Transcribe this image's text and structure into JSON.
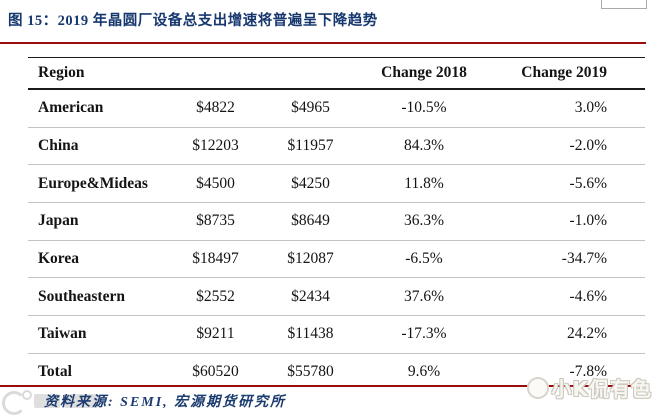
{
  "figure": {
    "title": "图 15：2019 年晶圆厂设备总支出增速将普遍呈下降趋势",
    "source_note": "资料来源: SEMI, 宏源期货研究所"
  },
  "watermark": {
    "brand_right": "小K侃有色"
  },
  "colors": {
    "title_blue": "#17386e",
    "divider_red": "#9a0d0d",
    "row_divider_gray": "#c3c3c3",
    "table_text": "#141414"
  },
  "chart_data": {
    "type": "table",
    "title": "2019 年晶圆厂设备总支出增速将普遍呈下降趋势",
    "header_labels": {
      "region": "Region",
      "value_2018": "",
      "value_2019": "",
      "change_2018": "Change 2018",
      "change_2019": "Change 2019"
    },
    "rows": [
      {
        "region": "American",
        "value_2018": "$4822",
        "value_2019": "$4965",
        "change_2018": "-10.5%",
        "change_2019": "3.0%"
      },
      {
        "region": "China",
        "value_2018": "$12203",
        "value_2019": "$11957",
        "change_2018": "84.3%",
        "change_2019": "-2.0%"
      },
      {
        "region": "Europe&Mideas",
        "value_2018": "$4500",
        "value_2019": "$4250",
        "change_2018": "11.8%",
        "change_2019": "-5.6%"
      },
      {
        "region": "Japan",
        "value_2018": "$8735",
        "value_2019": "$8649",
        "change_2018": "36.3%",
        "change_2019": "-1.0%"
      },
      {
        "region": "Korea",
        "value_2018": "$18497",
        "value_2019": "$12087",
        "change_2018": "-6.5%",
        "change_2019": "-34.7%"
      },
      {
        "region": "Southeastern",
        "value_2018": "$2552",
        "value_2019": "$2434",
        "change_2018": "37.6%",
        "change_2019": "-4.6%"
      },
      {
        "region": "Taiwan",
        "value_2018": "$9211",
        "value_2019": "$11438",
        "change_2018": "-17.3%",
        "change_2019": "24.2%"
      },
      {
        "region": "Total",
        "value_2018": "$60520",
        "value_2019": "$55780",
        "change_2018": "9.6%",
        "change_2019": "-7.8%"
      }
    ]
  }
}
